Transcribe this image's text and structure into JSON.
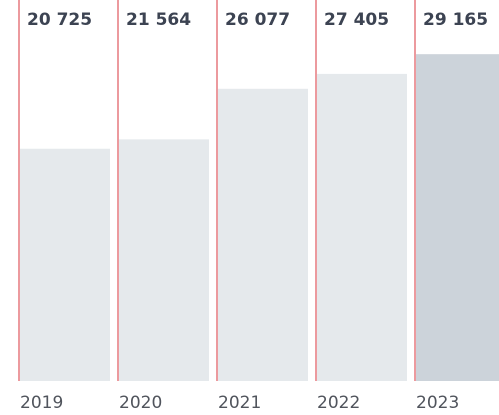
{
  "chart_data": {
    "type": "bar",
    "categories": [
      "2019",
      "2020",
      "2021",
      "2022",
      "2023"
    ],
    "values": [
      20725,
      21564,
      26077,
      27405,
      29165
    ],
    "value_labels": [
      "20 725",
      "21 564",
      "26 077",
      "27 405",
      "29 165"
    ],
    "colors": [
      "#e5e9ec",
      "#e5e9ec",
      "#e5e9ec",
      "#e5e9ec",
      "#ccd3da"
    ],
    "divider_color": "#d8343c",
    "ylim": [
      0,
      34000
    ]
  }
}
